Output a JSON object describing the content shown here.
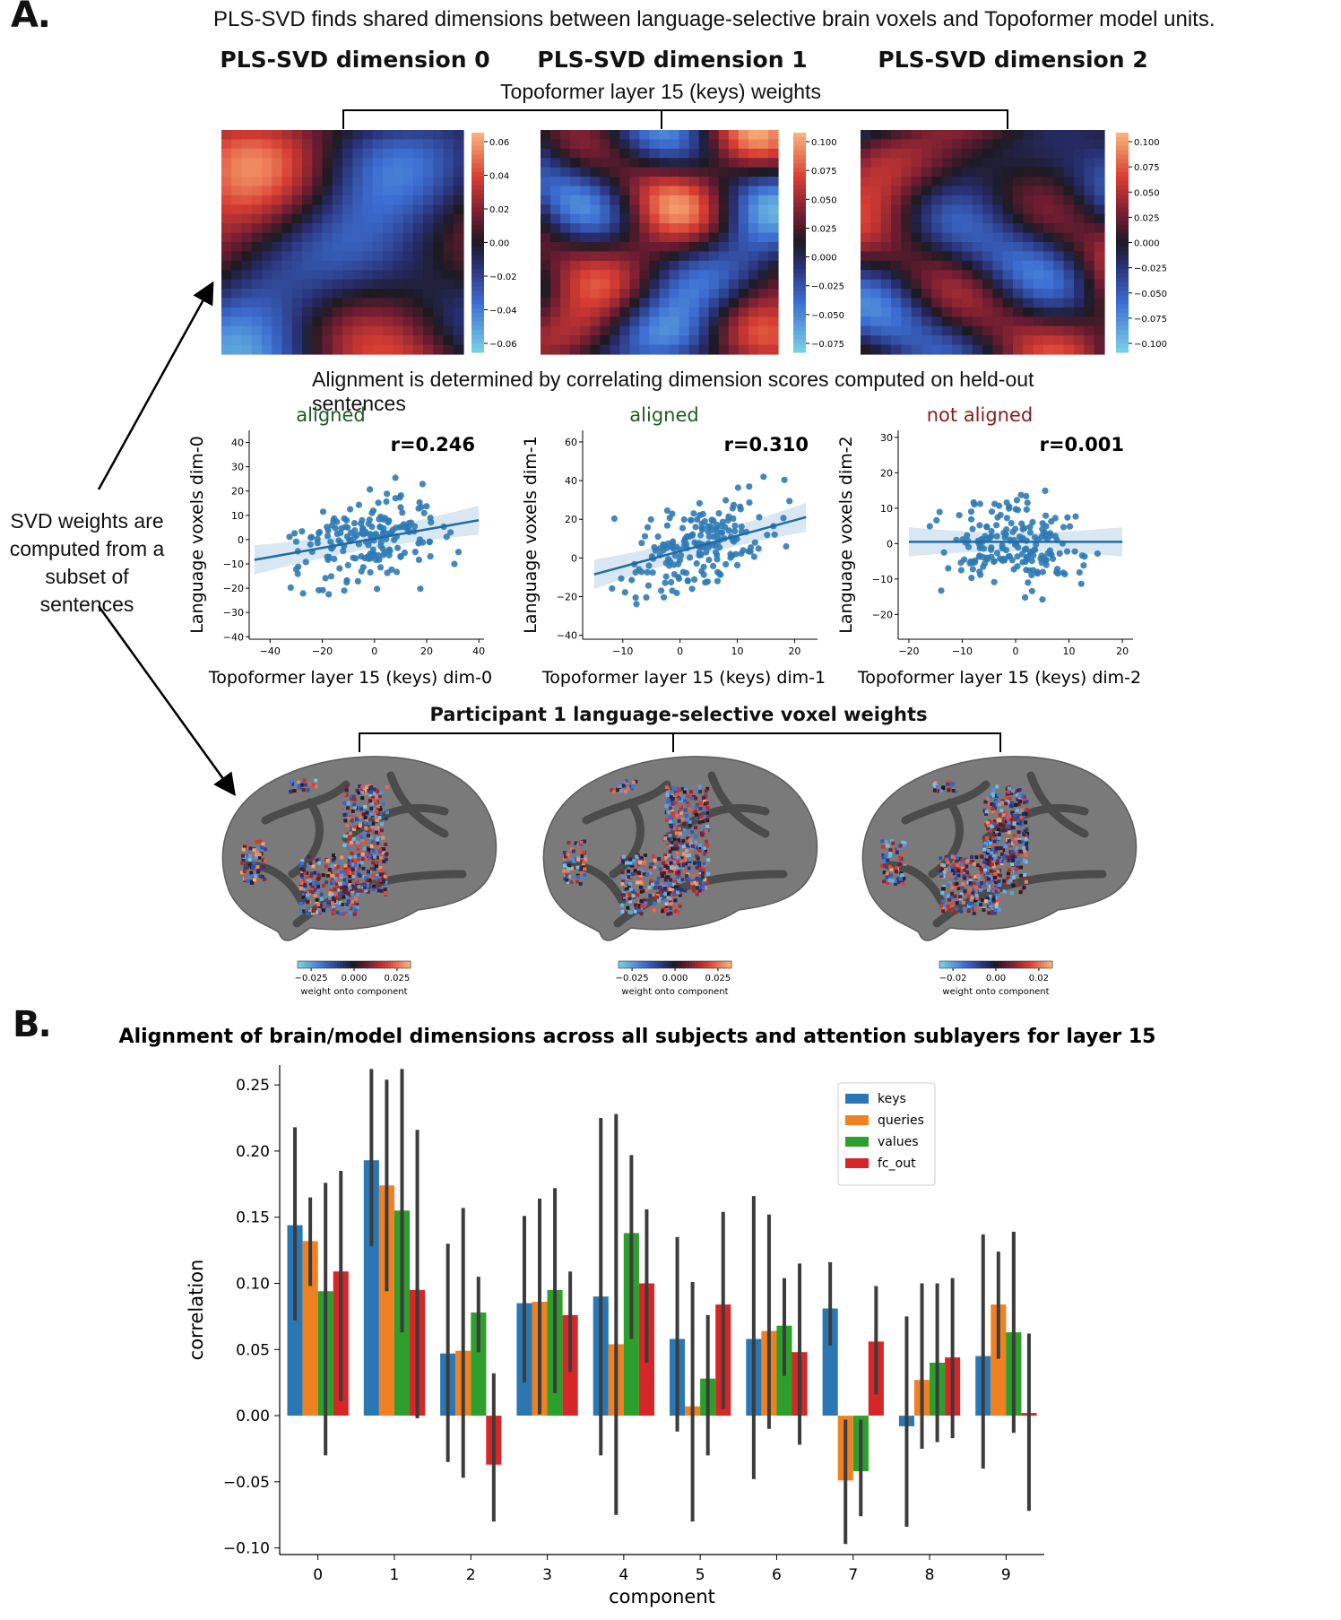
{
  "panel_a": {
    "label": "A.",
    "intro": "PLS-SVD finds shared dimensions between language-selective brain voxels and Topoformer model units.",
    "dimension_titles": [
      "PLS-SVD dimension 0",
      "PLS-SVD dimension 1",
      "PLS-SVD dimension 2"
    ],
    "weights_title": "Topoformer layer 15 (keys) weights",
    "alignment_note": "Alignment is determined by correlating dimension scores computed on held-out sentences",
    "side_note": "SVD weights are computed from a subset of sentences",
    "voxel_title": "Participant 1 language-selective voxel weights",
    "brain_colorbar_label": "weight onto component",
    "colors": {
      "positive": "#f6a96b",
      "mid_pos": "#b3263f",
      "center": "#1c1a22",
      "mid_neg": "#3a48b0",
      "negative": "#6fc6e0",
      "aligned": "#1a5e1f",
      "not_aligned": "#8b1a1a",
      "scatter": "#2f7ab5"
    }
  },
  "colorbars": [
    {
      "ticks": [
        "0.06",
        "0.04",
        "0.02",
        "0.00",
        "−0.02",
        "−0.04",
        "−0.06"
      ]
    },
    {
      "ticks": [
        "0.100",
        "0.075",
        "0.050",
        "0.025",
        "0.000",
        "−0.025",
        "−0.050",
        "−0.075"
      ]
    },
    {
      "ticks": [
        "0.100",
        "0.075",
        "0.050",
        "0.025",
        "0.000",
        "−0.025",
        "−0.050",
        "−0.075",
        "−0.100"
      ]
    }
  ],
  "brain_colorbars": [
    {
      "ticks": [
        "−0.025",
        "0.000",
        "0.025"
      ]
    },
    {
      "ticks": [
        "−0.025",
        "0.000",
        "0.025"
      ]
    },
    {
      "ticks": [
        "−0.02",
        "0.00",
        "0.02"
      ]
    }
  ],
  "scatters": [
    {
      "status": "aligned",
      "r_label": "r=0.246",
      "xlabel": "Topoformer layer 15 (keys) dim-0",
      "ylabel": "Language voxels dim-0",
      "xticks": [
        -40,
        -20,
        0,
        20,
        40
      ],
      "yticks": [
        -40,
        -30,
        -20,
        -10,
        0,
        10,
        20,
        30,
        40
      ],
      "xlim": [
        -48,
        42
      ],
      "ylim": [
        -41,
        45
      ],
      "fit": {
        "slope": 0.19,
        "intercept": 0.4
      }
    },
    {
      "status": "aligned",
      "r_label": "r=0.310",
      "xlabel": "Topoformer layer 15 (keys) dim-1",
      "ylabel": "Language voxels dim-1",
      "xticks": [
        -10,
        0,
        10,
        20
      ],
      "yticks": [
        -40,
        -20,
        0,
        20,
        40,
        60
      ],
      "xlim": [
        -17,
        24
      ],
      "ylim": [
        -42,
        66
      ],
      "fit": {
        "slope": 0.8,
        "intercept": 3.5
      }
    },
    {
      "status": "not aligned",
      "r_label": "r=0.001",
      "xlabel": "Topoformer layer 15 (keys) dim-2",
      "ylabel": "Language voxels dim-2",
      "xticks": [
        -20,
        -10,
        0,
        10,
        20
      ],
      "yticks": [
        -20,
        -10,
        0,
        10,
        20,
        30
      ],
      "xlim": [
        -22,
        22
      ],
      "ylim": [
        -27,
        32
      ],
      "fit": {
        "slope": 0.0,
        "intercept": 0.5
      }
    }
  ],
  "panel_b": {
    "label": "B."
  },
  "chart_data": {
    "type": "bar",
    "title": "Alignment of brain/model dimensions across all subjects and attention sublayers for layer 15",
    "xlabel": "component",
    "ylabel": "correlation",
    "ylim": [
      -0.105,
      0.265
    ],
    "yticks": [
      "0.25",
      "0.20",
      "0.15",
      "0.10",
      "0.05",
      "0.00",
      "−0.05",
      "−0.10"
    ],
    "categories": [
      "0",
      "1",
      "2",
      "3",
      "4",
      "5",
      "6",
      "7",
      "8",
      "9"
    ],
    "legend_position": "top-right",
    "series": [
      {
        "name": "keys",
        "color": "#2a77b4",
        "values": [
          0.144,
          0.193,
          0.047,
          0.085,
          0.09,
          0.058,
          0.058,
          0.081,
          -0.008,
          0.045
        ],
        "ci": [
          [
            0.072,
            0.218
          ],
          [
            0.128,
            0.262
          ],
          [
            -0.035,
            0.13
          ],
          [
            0.025,
            0.151
          ],
          [
            -0.03,
            0.225
          ],
          [
            -0.012,
            0.135
          ],
          [
            -0.048,
            0.166
          ],
          [
            0.053,
            0.116
          ],
          [
            -0.084,
            0.075
          ],
          [
            -0.04,
            0.137
          ]
        ]
      },
      {
        "name": "queries",
        "color": "#f08122",
        "values": [
          0.132,
          0.174,
          0.049,
          0.086,
          0.054,
          0.007,
          0.064,
          -0.049,
          0.027,
          0.084
        ],
        "ci": [
          [
            0.098,
            0.165
          ],
          [
            0.094,
            0.254
          ],
          [
            -0.047,
            0.157
          ],
          [
            0.001,
            0.164
          ],
          [
            -0.075,
            0.228
          ],
          [
            -0.08,
            0.101
          ],
          [
            -0.01,
            0.152
          ],
          [
            -0.097,
            -0.003
          ],
          [
            -0.025,
            0.1
          ],
          [
            0.043,
            0.124
          ]
        ]
      },
      {
        "name": "values",
        "color": "#2c9f2c",
        "values": [
          0.094,
          0.155,
          0.078,
          0.095,
          0.138,
          0.028,
          0.068,
          -0.042,
          0.04,
          0.063
        ],
        "ci": [
          [
            -0.03,
            0.176
          ],
          [
            0.063,
            0.262
          ],
          [
            0.048,
            0.105
          ],
          [
            0.017,
            0.172
          ],
          [
            0.058,
            0.197
          ],
          [
            -0.03,
            0.076
          ],
          [
            0.03,
            0.104
          ],
          [
            -0.076,
            -0.003
          ],
          [
            -0.02,
            0.1
          ],
          [
            -0.013,
            0.139
          ]
        ]
      },
      {
        "name": "fc_out",
        "color": "#d62627",
        "values": [
          0.109,
          0.095,
          -0.037,
          0.076,
          0.1,
          0.084,
          0.048,
          0.056,
          0.044,
          0.002
        ],
        "ci": [
          [
            0.011,
            0.185
          ],
          [
            -0.002,
            0.216
          ],
          [
            -0.08,
            0.032
          ],
          [
            0.033,
            0.109
          ],
          [
            0.04,
            0.156
          ],
          [
            0.005,
            0.154
          ],
          [
            -0.022,
            0.115
          ],
          [
            0.016,
            0.098
          ],
          [
            -0.017,
            0.104
          ],
          [
            -0.072,
            0.062
          ]
        ]
      }
    ]
  }
}
